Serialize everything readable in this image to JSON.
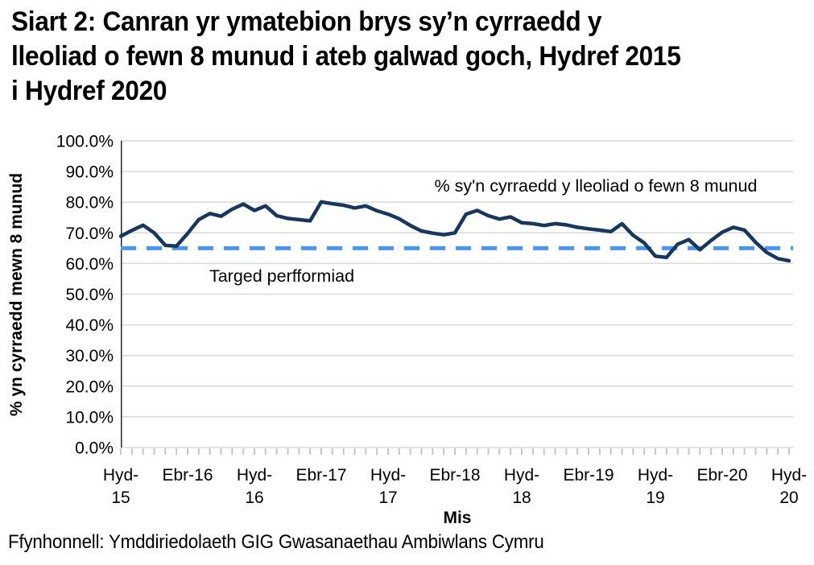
{
  "page": {
    "title": "Siart 2: Canran yr ymatebion brys sy’n cyrraedd y lleoliad o fewn 8 munud i ateb galwad goch, Hydref 2015 i Hydref 2020",
    "title_lines": [
      "Siart 2: Canran yr ymatebion brys sy’n cyrraedd y",
      "lleoliad o fewn 8 munud i ateb galwad goch, Hydref 2015",
      "i Hydref 2020"
    ],
    "source": "Ffynhonnell: Ymddiriedolaeth GIG Gwasanaethau Ambiwlans Cymru"
  },
  "chart_data": {
    "type": "line",
    "title": "Siart 2: Canran yr ymatebion brys sy’n cyrraedd y lleoliad o fewn 8 munud i ateb galwad goch, Hydref 2015 i Hydref 2020",
    "xlabel": "Mis",
    "ylabel": "% yn cyrraedd mewn 8 munud",
    "ylim": [
      0,
      100
    ],
    "grid": true,
    "legend_position": "inline-annotations",
    "y_tick_labels": [
      "0.0%",
      "10.0%",
      "20.0%",
      "30.0%",
      "40.0%",
      "50.0%",
      "60.0%",
      "70.0%",
      "80.0%",
      "90.0%",
      "100.0%"
    ],
    "x_ticks": [
      {
        "i": 0,
        "label": "Hyd-15",
        "lines": [
          "Hyd-",
          "15"
        ]
      },
      {
        "i": 6,
        "label": "Ebr-16",
        "lines": [
          "Ebr-16"
        ]
      },
      {
        "i": 12,
        "label": "Hyd-16",
        "lines": [
          "Hyd-",
          "16"
        ]
      },
      {
        "i": 18,
        "label": "Ebr-17",
        "lines": [
          "Ebr-17"
        ]
      },
      {
        "i": 24,
        "label": "Hyd-17",
        "lines": [
          "Hyd-",
          "17"
        ]
      },
      {
        "i": 30,
        "label": "Ebr-18",
        "lines": [
          "Ebr-18"
        ]
      },
      {
        "i": 36,
        "label": "Hyd-18",
        "lines": [
          "Hyd-",
          "18"
        ]
      },
      {
        "i": 42,
        "label": "Ebr-19",
        "lines": [
          "Ebr-19"
        ]
      },
      {
        "i": 48,
        "label": "Hyd-19",
        "lines": [
          "Hyd-",
          "19"
        ]
      },
      {
        "i": 54,
        "label": "Ebr-20",
        "lines": [
          "Ebr-20"
        ]
      },
      {
        "i": 60,
        "label": "Hyd-20",
        "lines": [
          "Hyd-",
          "20"
        ]
      }
    ],
    "x": [
      "2015-10",
      "2015-11",
      "2015-12",
      "2016-01",
      "2016-02",
      "2016-03",
      "2016-04",
      "2016-05",
      "2016-06",
      "2016-07",
      "2016-08",
      "2016-09",
      "2016-10",
      "2016-11",
      "2016-12",
      "2017-01",
      "2017-02",
      "2017-03",
      "2017-04",
      "2017-05",
      "2017-06",
      "2017-07",
      "2017-08",
      "2017-09",
      "2017-10",
      "2017-11",
      "2017-12",
      "2018-01",
      "2018-02",
      "2018-03",
      "2018-04",
      "2018-05",
      "2018-06",
      "2018-07",
      "2018-08",
      "2018-09",
      "2018-10",
      "2018-11",
      "2018-12",
      "2019-01",
      "2019-02",
      "2019-03",
      "2019-04",
      "2019-05",
      "2019-06",
      "2019-07",
      "2019-08",
      "2019-09",
      "2019-10",
      "2019-11",
      "2019-12",
      "2020-01",
      "2020-02",
      "2020-03",
      "2020-04",
      "2020-05",
      "2020-06",
      "2020-07",
      "2020-08",
      "2020-09",
      "2020-10"
    ],
    "series": [
      {
        "name": "% sy'n cyrraedd y lleoliad o fewn 8 munud",
        "color": "#17375E",
        "values": [
          68.9,
          70.8,
          72.5,
          70.0,
          65.9,
          65.7,
          69.8,
          74.3,
          76.3,
          75.4,
          77.7,
          79.4,
          77.3,
          78.8,
          75.6,
          74.7,
          74.3,
          73.9,
          80.1,
          79.5,
          79.0,
          78.1,
          78.8,
          77.2,
          76.1,
          74.6,
          72.4,
          70.6,
          69.9,
          69.4,
          70.0,
          76.1,
          77.3,
          75.6,
          74.5,
          75.2,
          73.3,
          73.0,
          72.4,
          73.0,
          72.6,
          71.8,
          71.3,
          70.9,
          70.4,
          73.0,
          69.2,
          66.7,
          62.4,
          62.0,
          66.3,
          67.8,
          64.5,
          67.5,
          70.2,
          71.8,
          70.9,
          66.9,
          63.6,
          61.6,
          60.9
        ]
      }
    ],
    "target": {
      "label": "Targed perfformiad",
      "value": 65,
      "color": "#4D94F0",
      "style": "dashed"
    },
    "colors": {
      "gridline": "#D9D9D9",
      "tick": "#C6C6C6",
      "axis": "#262626",
      "text": "#000000"
    }
  }
}
